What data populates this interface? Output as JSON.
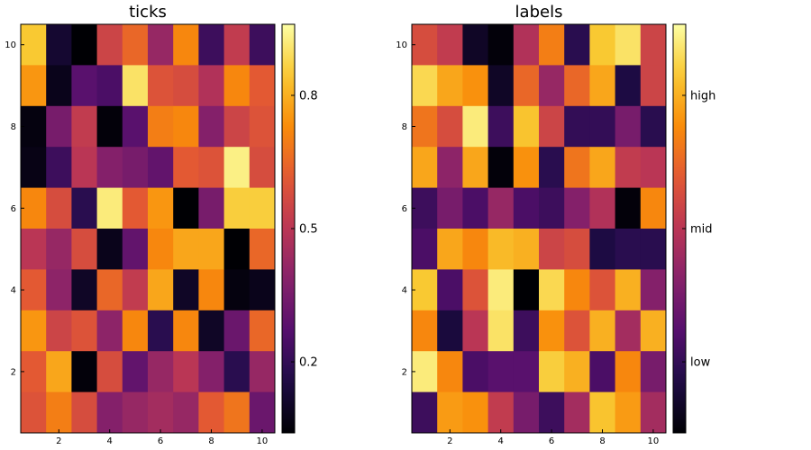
{
  "chart_data": [
    {
      "type": "heatmap",
      "title": "ticks",
      "x_ticks": [
        2,
        4,
        6,
        8,
        10
      ],
      "y_ticks": [
        2,
        4,
        6,
        8,
        10
      ],
      "xlim": [
        0.5,
        10.5
      ],
      "ylim": [
        0.5,
        10.5
      ],
      "colormap": "inferno",
      "clim": [
        0.04,
        0.96
      ],
      "colorbar": {
        "ticks": [
          {
            "value": 0.2,
            "label": "0.2"
          },
          {
            "value": 0.5,
            "label": "0.5"
          },
          {
            "value": 0.8,
            "label": "0.8"
          }
        ]
      },
      "grid": false,
      "rows_top_to_bottom": [
        [
          0.85,
          0.12,
          0.04,
          0.55,
          0.65,
          0.42,
          0.72,
          0.22,
          0.52,
          0.22
        ],
        [
          0.75,
          0.08,
          0.28,
          0.25,
          0.9,
          0.6,
          0.58,
          0.48,
          0.72,
          0.62
        ],
        [
          0.06,
          0.35,
          0.52,
          0.05,
          0.28,
          0.7,
          0.72,
          0.38,
          0.55,
          0.6
        ],
        [
          0.07,
          0.22,
          0.5,
          0.38,
          0.35,
          0.3,
          0.62,
          0.6,
          0.93,
          0.58
        ],
        [
          0.72,
          0.58,
          0.18,
          0.92,
          0.62,
          0.75,
          0.03,
          0.35,
          0.86,
          0.86
        ],
        [
          0.5,
          0.42,
          0.58,
          0.08,
          0.3,
          0.72,
          0.78,
          0.78,
          0.02,
          0.65
        ],
        [
          0.62,
          0.4,
          0.1,
          0.65,
          0.52,
          0.78,
          0.1,
          0.72,
          0.06,
          0.08
        ],
        [
          0.75,
          0.55,
          0.6,
          0.4,
          0.72,
          0.18,
          0.72,
          0.1,
          0.32,
          0.65
        ],
        [
          0.62,
          0.78,
          0.05,
          0.58,
          0.3,
          0.42,
          0.5,
          0.38,
          0.18,
          0.42
        ],
        [
          0.6,
          0.7,
          0.58,
          0.38,
          0.42,
          0.45,
          0.42,
          0.62,
          0.68,
          0.32
        ]
      ]
    },
    {
      "type": "heatmap",
      "title": "labels",
      "x_ticks": [
        2,
        4,
        6,
        8,
        10
      ],
      "y_ticks": [
        2,
        4,
        6,
        8,
        10
      ],
      "xlim": [
        0.5,
        10.5
      ],
      "ylim": [
        0.5,
        10.5
      ],
      "colormap": "inferno",
      "clim": [
        0.04,
        0.96
      ],
      "colorbar": {
        "ticks": [
          {
            "value": 0.2,
            "label": "low"
          },
          {
            "value": 0.5,
            "label": "mid"
          },
          {
            "value": 0.8,
            "label": "high"
          }
        ]
      },
      "grid": false,
      "rows_top_to_bottom": [
        [
          0.58,
          0.52,
          0.1,
          0.05,
          0.48,
          0.7,
          0.18,
          0.85,
          0.9,
          0.55
        ],
        [
          0.88,
          0.78,
          0.74,
          0.1,
          0.65,
          0.42,
          0.65,
          0.78,
          0.15,
          0.55
        ],
        [
          0.68,
          0.58,
          0.92,
          0.22,
          0.84,
          0.55,
          0.2,
          0.2,
          0.35,
          0.18
        ],
        [
          0.78,
          0.4,
          0.78,
          0.05,
          0.74,
          0.18,
          0.68,
          0.78,
          0.52,
          0.5
        ],
        [
          0.22,
          0.35,
          0.25,
          0.42,
          0.25,
          0.22,
          0.38,
          0.48,
          0.05,
          0.72
        ],
        [
          0.25,
          0.78,
          0.72,
          0.82,
          0.8,
          0.55,
          0.58,
          0.15,
          0.18,
          0.18
        ],
        [
          0.85,
          0.25,
          0.6,
          0.92,
          0.02,
          0.88,
          0.72,
          0.6,
          0.8,
          0.38
        ],
        [
          0.72,
          0.14,
          0.5,
          0.9,
          0.22,
          0.74,
          0.6,
          0.8,
          0.45,
          0.8
        ],
        [
          0.92,
          0.72,
          0.25,
          0.28,
          0.28,
          0.86,
          0.8,
          0.25,
          0.72,
          0.35
        ],
        [
          0.22,
          0.76,
          0.74,
          0.52,
          0.35,
          0.22,
          0.45,
          0.84,
          0.76,
          0.45
        ]
      ]
    }
  ]
}
